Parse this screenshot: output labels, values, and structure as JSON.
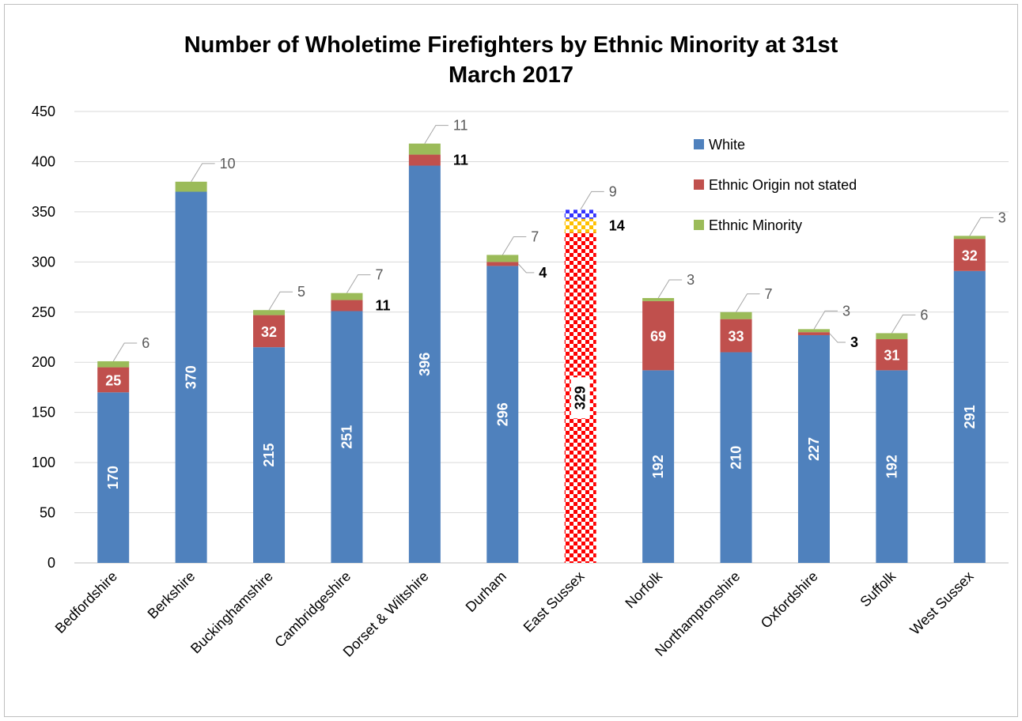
{
  "chart_data": {
    "type": "bar",
    "stacked": true,
    "title_lines": [
      "Number of Wholetime Firefighters by Ethnic Minority at 31st",
      "March 2017"
    ],
    "xlabel": "",
    "ylabel": "",
    "ylim": [
      0,
      450
    ],
    "yticks": [
      0,
      50,
      100,
      150,
      200,
      250,
      300,
      350,
      400,
      450
    ],
    "grid": true,
    "legend_position": "top-right",
    "categories": [
      "Bedfordshire",
      "Berkshire",
      "Buckinghamshire",
      "Cambridgeshire",
      "Dorset & Wiltshire",
      "Durham",
      "East Sussex",
      "Norfolk",
      "Northamptonshire",
      "Oxfordshire",
      "Suffolk",
      "West Sussex"
    ],
    "series": [
      {
        "name": "White",
        "color": "#4f81bd",
        "values": [
          170,
          370,
          215,
          251,
          396,
          296,
          329,
          192,
          210,
          227,
          192,
          291
        ]
      },
      {
        "name": "Ethnic Origin not stated",
        "color": "#c0504d",
        "values": [
          25,
          0,
          32,
          11,
          11,
          4,
          14,
          69,
          33,
          3,
          31,
          32
        ]
      },
      {
        "name": "Ethnic Minority",
        "color": "#9bbb59",
        "values": [
          6,
          10,
          5,
          7,
          11,
          7,
          9,
          3,
          7,
          3,
          6,
          3
        ]
      }
    ],
    "highlighted_category": "East Sussex",
    "highlight_patterns": [
      "#ff0000",
      "#ffc000",
      "#3333ff"
    ]
  }
}
